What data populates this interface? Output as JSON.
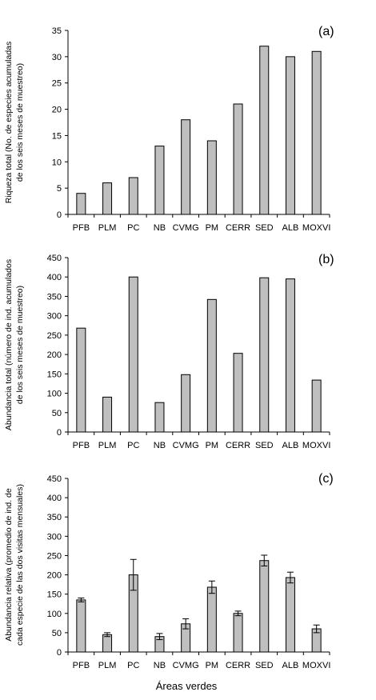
{
  "chart_data": [
    {
      "type": "bar",
      "panel_label": "(a)",
      "categories": [
        "PFB",
        "PLM",
        "PC",
        "NB",
        "CVMG",
        "PM",
        "CERR",
        "SED",
        "ALB",
        "MOXVI"
      ],
      "values": [
        4,
        6,
        7,
        13,
        18,
        14,
        21,
        32,
        30,
        31
      ],
      "ylabel_lines": [
        "Riqueza total (No. de especies acumuladas",
        "de los seis meses de muestreo)"
      ],
      "ylim": [
        0,
        35
      ],
      "yticks": [
        0,
        5,
        10,
        15,
        20,
        25,
        30,
        35
      ],
      "grid": false
    },
    {
      "type": "bar",
      "panel_label": "(b)",
      "categories": [
        "PFB",
        "PLM",
        "PC",
        "NB",
        "CVMG",
        "PM",
        "CERR",
        "SED",
        "ALB",
        "MOXVI"
      ],
      "values": [
        268,
        90,
        400,
        76,
        148,
        342,
        203,
        398,
        395,
        134
      ],
      "ylabel_lines": [
        "Abundancia total (número de ind. acumulados",
        "de los seis meses de muestreo)"
      ],
      "ylim": [
        0,
        450
      ],
      "yticks": [
        0,
        50,
        100,
        150,
        200,
        250,
        300,
        350,
        400,
        450
      ],
      "grid": false
    },
    {
      "type": "bar",
      "panel_label": "(c)",
      "categories": [
        "PFB",
        "PLM",
        "PC",
        "NB",
        "CVMG",
        "PM",
        "CERR",
        "SED",
        "ALB",
        "MOXVI"
      ],
      "values": [
        135,
        45,
        200,
        40,
        73,
        168,
        100,
        237,
        193,
        60
      ],
      "errors": [
        5,
        5,
        40,
        8,
        13,
        16,
        6,
        14,
        14,
        10
      ],
      "ylabel_lines": [
        "Abundancia relativa (promedio de ind. de",
        "cada especie de las dos visitas mensuales)"
      ],
      "ylim": [
        0,
        450
      ],
      "yticks": [
        0,
        50,
        100,
        150,
        200,
        250,
        300,
        350,
        400,
        450
      ],
      "grid": false
    }
  ],
  "xlabel": "Áreas verdes"
}
